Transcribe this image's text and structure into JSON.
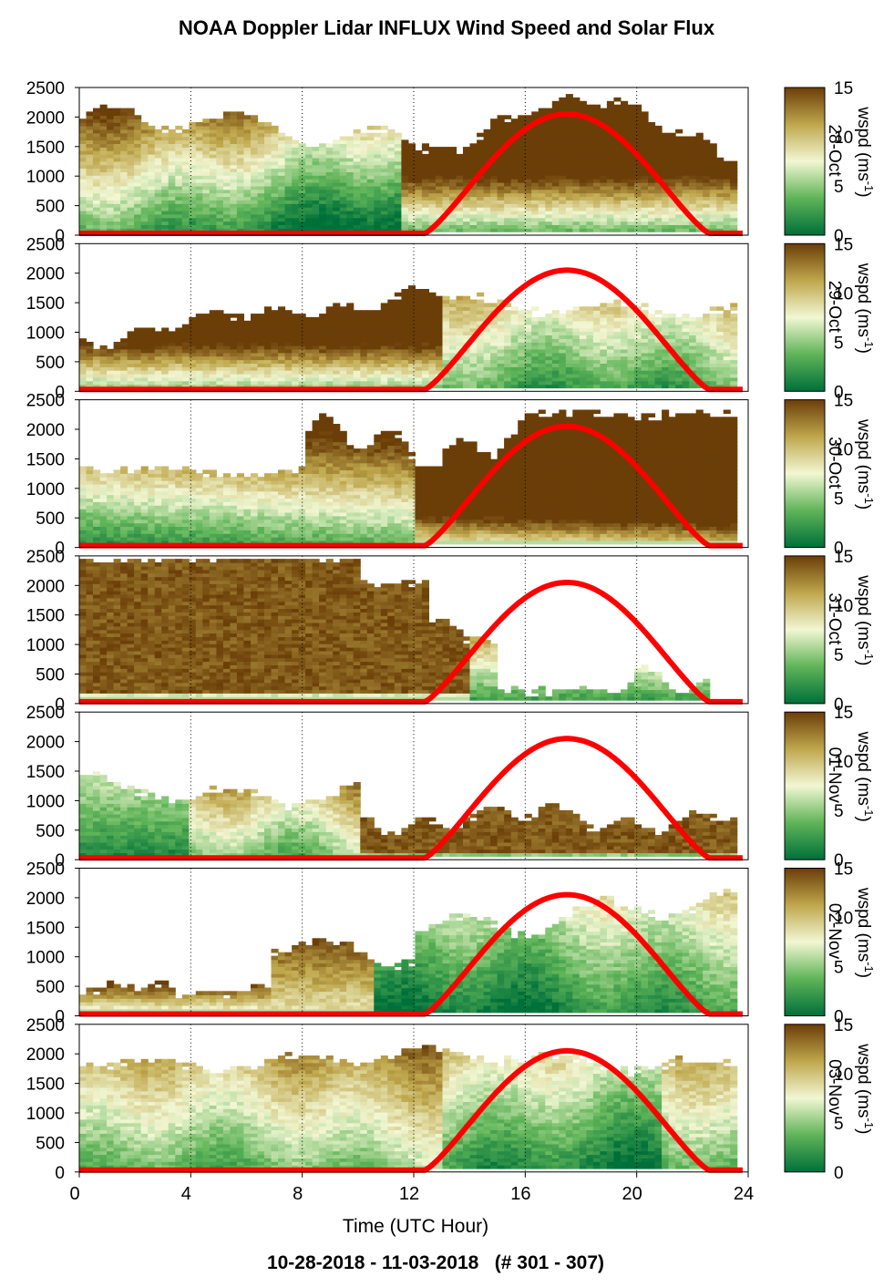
{
  "chart_data": {
    "type": "heatmap",
    "title": "NOAA Doppler Lidar INFLUX Wind Speed and Solar Flux",
    "footer": "10-28-2018 - 11-03-2018   (# 301 - 307)",
    "xlabel": "Time (UTC Hour)",
    "xlim": [
      0,
      24
    ],
    "xticks": [
      "0",
      "4",
      "8",
      "12",
      "16",
      "20",
      "24"
    ],
    "ylim": [
      0,
      2500
    ],
    "yticks": [
      "0",
      "500",
      "1000",
      "1500",
      "2000",
      "2500"
    ],
    "colorbar": {
      "label": "wspd (ms",
      "label_sup": "-1",
      "label_close": ")",
      "range": [
        0,
        15
      ],
      "ticks": [
        "0",
        "5",
        "10",
        "15"
      ],
      "colors": [
        "#00703a",
        "#5fb458",
        "#f2f7d3",
        "#bfa74c",
        "#6b3e08"
      ]
    },
    "solar_flux": {
      "color": "#ff0000",
      "sunrise_hour": 12.4,
      "sunset_hour": 22.6,
      "peak_hour": 17.5,
      "peak_height": 2020
    },
    "panels": [
      {
        "date": "28-Oct",
        "profile": "evening_high_to_low"
      },
      {
        "date": "29-Oct",
        "profile": "morning_high_then_moderate"
      },
      {
        "date": "30-Oct",
        "profile": "moderate_then_high"
      },
      {
        "date": "31-Oct",
        "profile": "very_high_then_low"
      },
      {
        "date": "01-Nov",
        "profile": "moderate_high_low_level"
      },
      {
        "date": "02-Nov",
        "profile": "low_winds"
      },
      {
        "date": "03-Nov",
        "profile": "moderate_deep"
      }
    ]
  }
}
